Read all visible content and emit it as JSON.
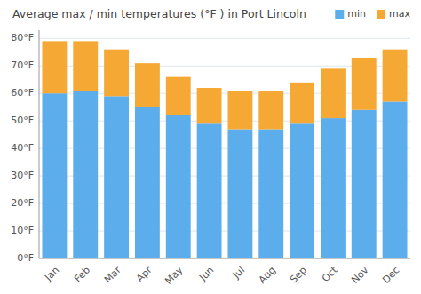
{
  "chart_data": {
    "type": "bar",
    "stacked": true,
    "title": "Average max / min temperatures (°F ) in Port Lincoln",
    "categories": [
      "Jan",
      "Feb",
      "Mar",
      "Apr",
      "May",
      "Jun",
      "Jul",
      "Aug",
      "Sep",
      "Oct",
      "Nov",
      "Dec"
    ],
    "series": [
      {
        "name": "min",
        "color": "#5badec",
        "values": [
          60,
          61,
          59,
          55,
          52,
          49,
          47,
          47,
          49,
          51,
          54,
          57
        ]
      },
      {
        "name": "max",
        "color": "#f5a833",
        "values": [
          19,
          18,
          17,
          16,
          14,
          13,
          14,
          14,
          15,
          18,
          19,
          19
        ]
      }
    ],
    "ylim": [
      0,
      83
    ],
    "yticks": [
      {
        "value": 0,
        "label": "0°F"
      },
      {
        "value": 10,
        "label": "10°F"
      },
      {
        "value": 20,
        "label": "20°F"
      },
      {
        "value": 30,
        "label": "30°F"
      },
      {
        "value": 40,
        "label": "40°F"
      },
      {
        "value": 50,
        "label": "50°F"
      },
      {
        "value": 60,
        "label": "60°F"
      },
      {
        "value": 70,
        "label": "70°F"
      },
      {
        "value": 80,
        "label": "80°F"
      }
    ],
    "grid": true,
    "legend": "top-right"
  }
}
